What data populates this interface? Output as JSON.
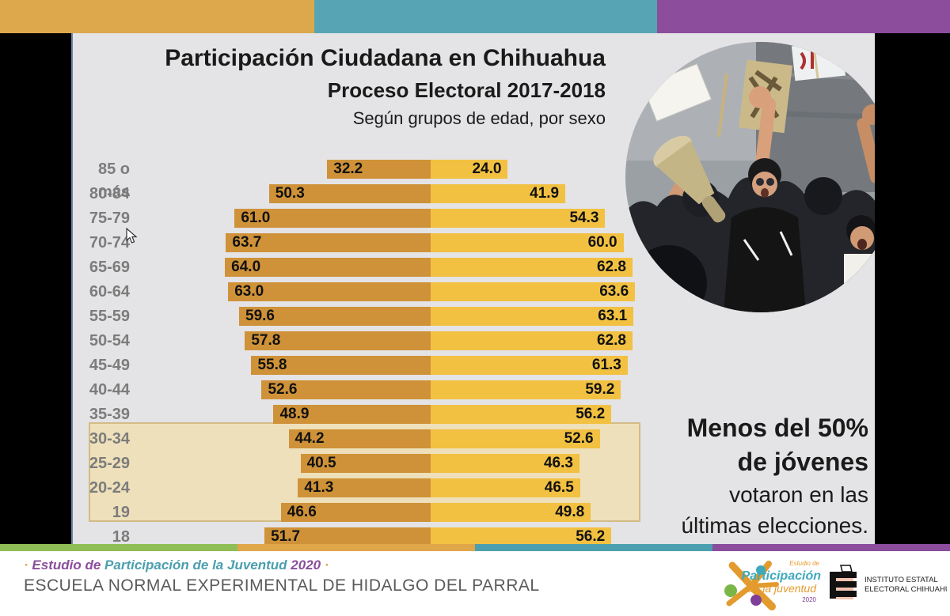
{
  "page": {
    "top_stripe_colors": [
      "#dda84b",
      "#57a5b4",
      "#8b4d9c"
    ],
    "bottom_stripe_colors": [
      "#8fbe56",
      "#e0a64a",
      "#4b9fae",
      "#8b4d9c"
    ]
  },
  "slide": {
    "title": "Participación Ciudadana en Chihuahua",
    "subtitle": "Proceso Electoral 2017-2018",
    "caption": "Según grupos de edad, por sexo",
    "callout": {
      "line1": "Menos del 50%",
      "line2": "de jóvenes",
      "line3": "votaron en las",
      "line4": "últimas elecciones."
    }
  },
  "chart_data": {
    "type": "bar",
    "variant": "diverging_horizontal",
    "title": "Participación Ciudadana en Chihuahua",
    "subtitle": "Proceso Electoral 2017-2018",
    "caption": "Según grupos de edad, por sexo",
    "categories": [
      "85 o más",
      "80-84",
      "75-79",
      "70-74",
      "65-69",
      "60-64",
      "55-59",
      "50-54",
      "45-49",
      "40-44",
      "35-39",
      "30-34",
      "25-29",
      "20-24",
      "19",
      "18"
    ],
    "series": [
      {
        "name": "barras_izquierda",
        "color": "#cf9238",
        "values": [
          32.2,
          50.3,
          61.0,
          63.7,
          64.0,
          63.0,
          59.6,
          57.8,
          55.8,
          52.6,
          48.9,
          44.2,
          40.5,
          41.3,
          46.6,
          51.7
        ]
      },
      {
        "name": "barras_derecha",
        "color": "#f2c142",
        "values": [
          24.0,
          41.9,
          54.3,
          60.0,
          62.8,
          63.6,
          63.1,
          62.8,
          61.3,
          59.2,
          56.2,
          52.6,
          46.3,
          46.5,
          49.8,
          56.2
        ]
      }
    ],
    "value_labels": "one_decimal_inside_bar_ends",
    "highlighted_categories": [
      "30-34",
      "25-29",
      "20-24",
      "19"
    ],
    "xlim_each_side": [
      0,
      70
    ],
    "grid": false,
    "legend": "none"
  },
  "colors": {
    "bar_left": "#cf9238",
    "bar_right": "#f2c142",
    "slide_bg": "#e4e3e5",
    "highlight_fill": "#eee0ba",
    "highlight_border": "#d3bc85"
  },
  "footer": {
    "tagline": {
      "dot_left": "·",
      "part1": "Estudio de",
      "part2": "Participación de la Juventud",
      "part3": "2020",
      "dot_right": "·"
    },
    "school": "ESCUELA NORMAL EXPERIMENTAL DE HIDALGO DEL PARRAL",
    "logo_juventud": {
      "line1": "Estudio de",
      "line2": "Participación",
      "line3": "de la juventud",
      "line4": "2020"
    },
    "logo_iee": {
      "line1": "INSTITUTO ESTATAL",
      "line2": "ELECTORAL CHIHUAHUA"
    }
  }
}
